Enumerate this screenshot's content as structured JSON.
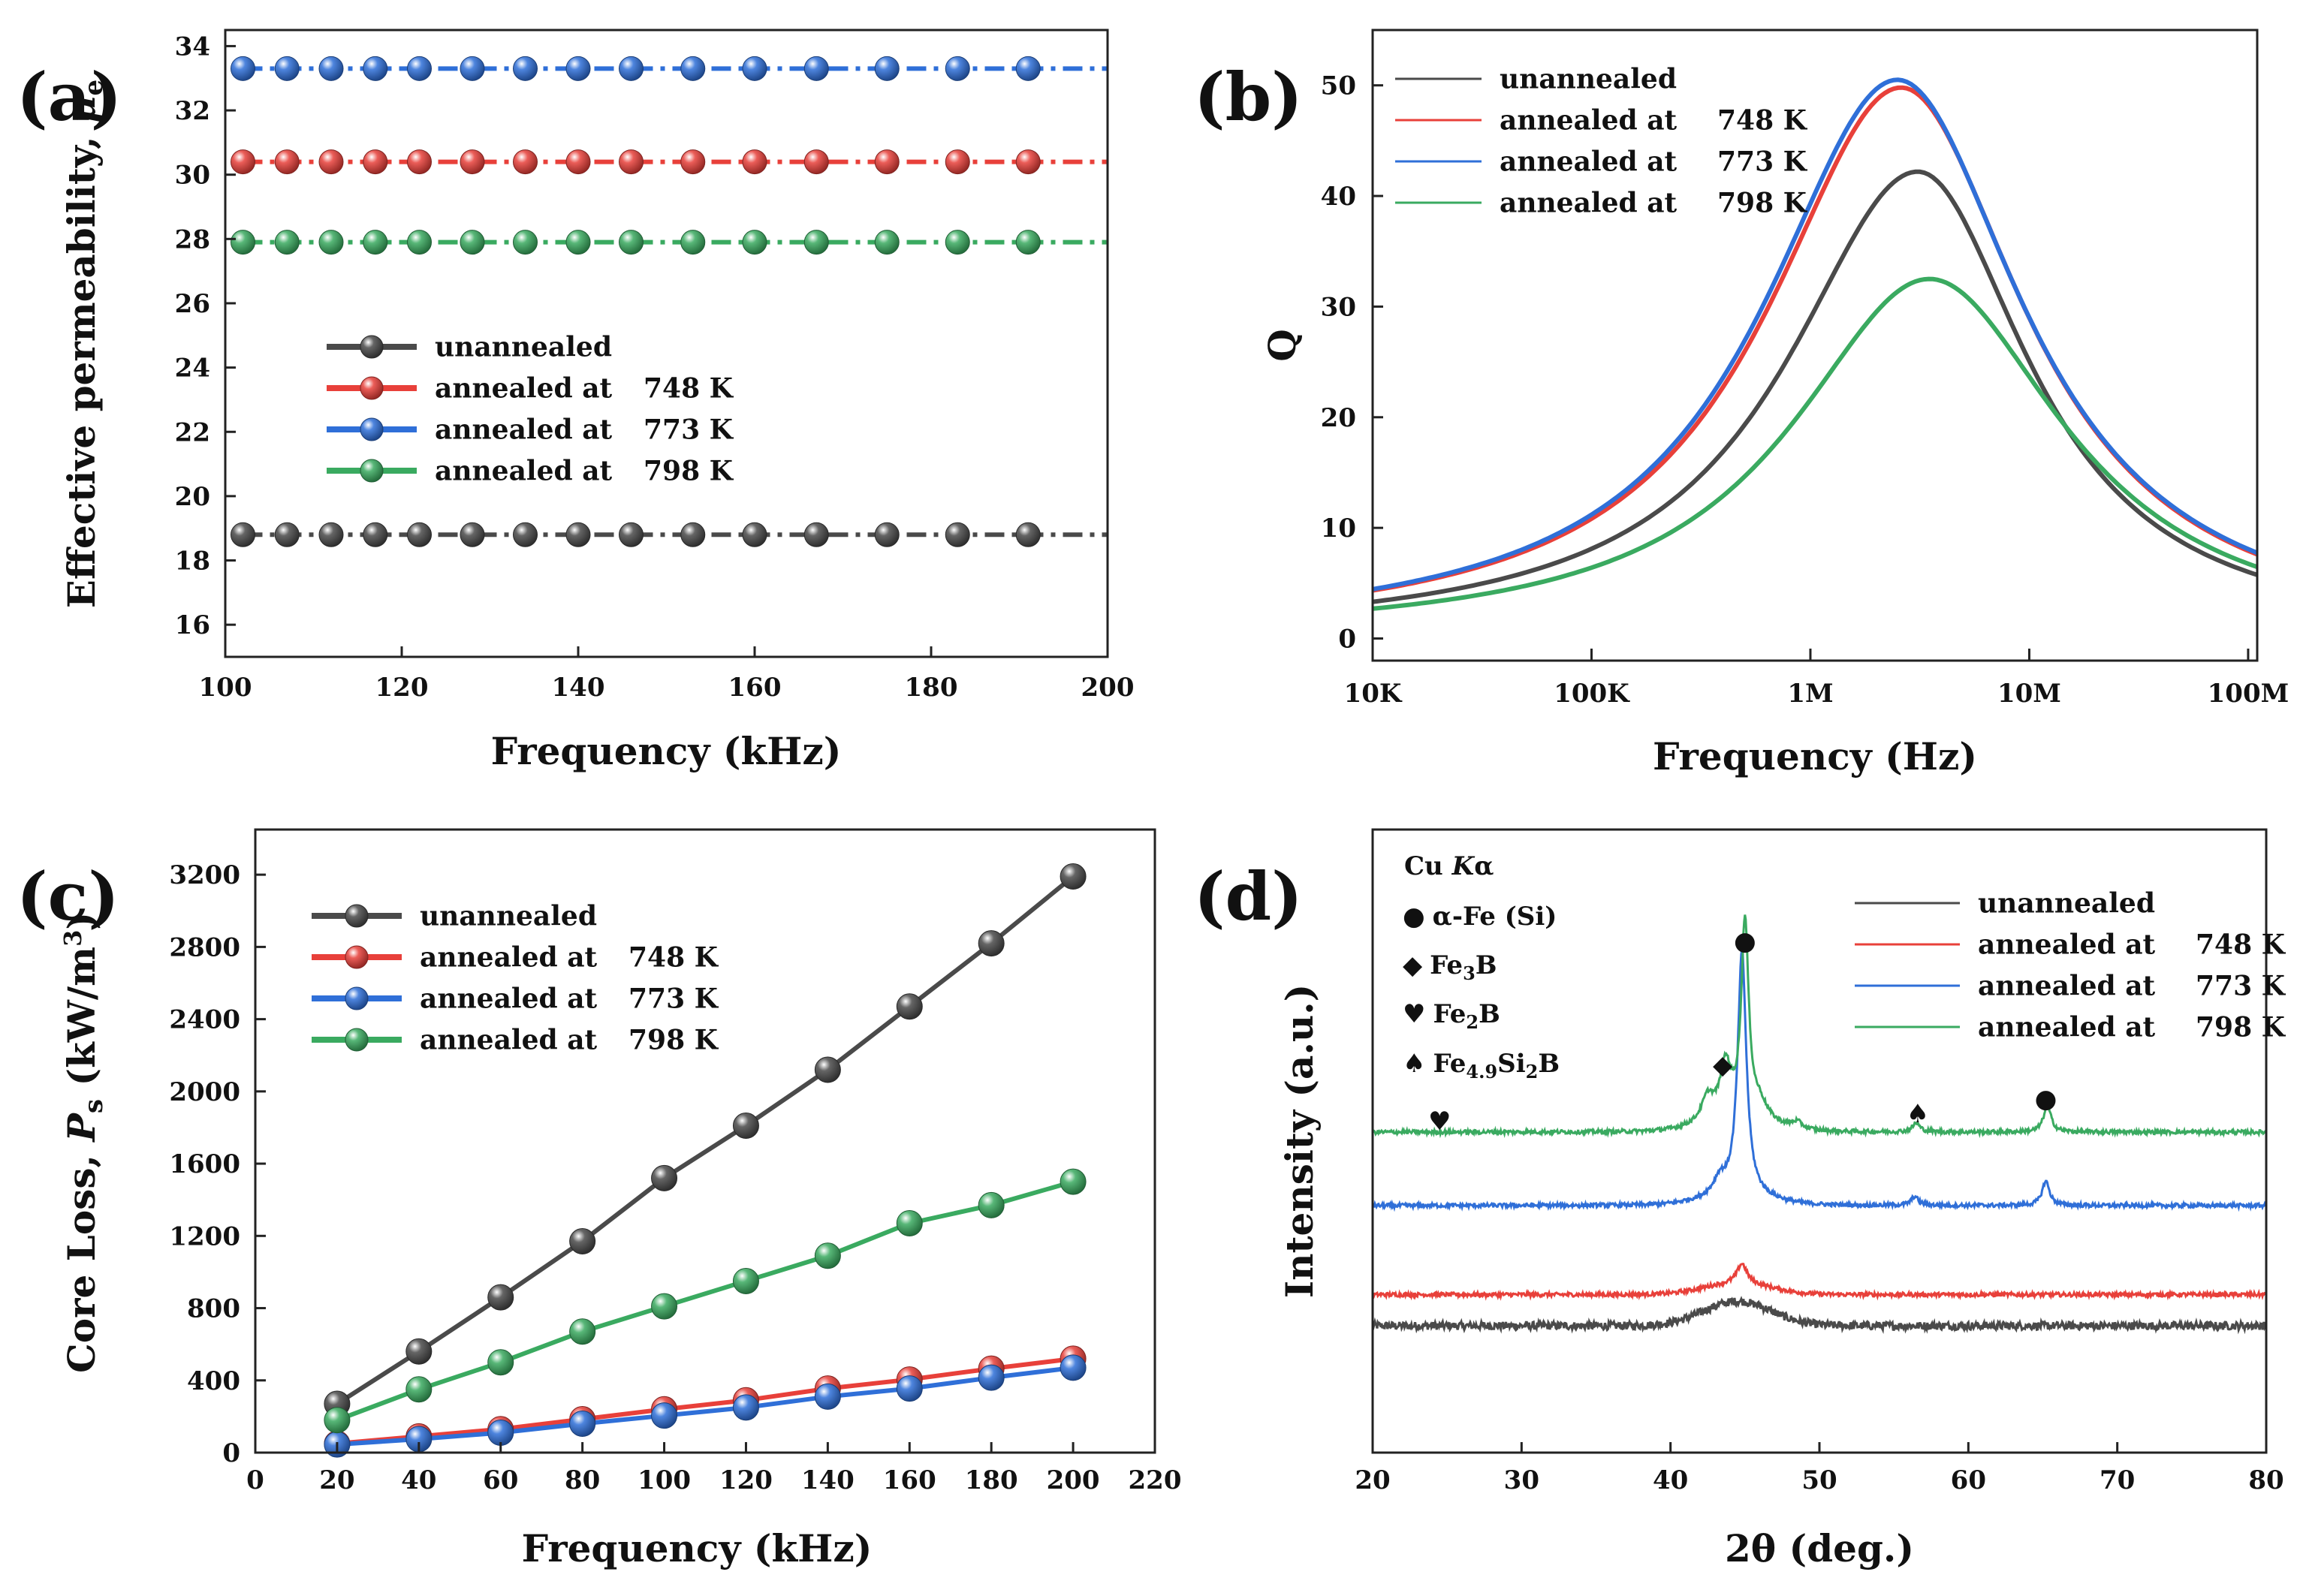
{
  "colors": {
    "unannealed": "#4a4a4a",
    "annealed_748": "#e8403a",
    "annealed_773": "#2f6fd8",
    "annealed_798": "#3aaa60"
  },
  "chart_data": [
    {
      "panel": "(a)",
      "type": "line",
      "xlabel": "Frequency (kHz)",
      "ylabel": "Effective permeability, ",
      "ylabel_symbol": "μ",
      "ylabel_sub": "e",
      "xlim": [
        100,
        200
      ],
      "ylim": [
        15,
        34.5
      ],
      "xticks": [
        "100",
        "120",
        "140",
        "160",
        "180",
        "200"
      ],
      "yticks": [
        "16",
        "18",
        "20",
        "22",
        "24",
        "26",
        "28",
        "30",
        "32",
        "34"
      ],
      "x": [
        102,
        107,
        112,
        117,
        122,
        128,
        134,
        140,
        146,
        153,
        160,
        167,
        175,
        183,
        191
      ],
      "series": [
        {
          "name": "unannealed",
          "key": "unannealed",
          "values": [
            18.8,
            18.8,
            18.8,
            18.8,
            18.8,
            18.8,
            18.8,
            18.8,
            18.8,
            18.8,
            18.8,
            18.8,
            18.8,
            18.8,
            18.8
          ]
        },
        {
          "name": "annealed at",
          "temp": "748 K",
          "key": "annealed_748",
          "values": [
            30.4,
            30.4,
            30.4,
            30.4,
            30.4,
            30.4,
            30.4,
            30.4,
            30.4,
            30.4,
            30.4,
            30.4,
            30.4,
            30.4,
            30.4
          ]
        },
        {
          "name": "annealed at",
          "temp": "773 K",
          "key": "annealed_773",
          "values": [
            33.3,
            33.3,
            33.3,
            33.3,
            33.3,
            33.3,
            33.3,
            33.3,
            33.3,
            33.3,
            33.3,
            33.3,
            33.3,
            33.3,
            33.3
          ]
        },
        {
          "name": "annealed at",
          "temp": "798 K",
          "key": "annealed_798",
          "values": [
            27.9,
            27.9,
            27.9,
            27.9,
            27.9,
            27.9,
            27.9,
            27.9,
            27.9,
            27.9,
            27.9,
            27.9,
            27.9,
            27.9,
            27.9
          ]
        }
      ],
      "legend": "center-left"
    },
    {
      "panel": "(b)",
      "type": "line",
      "xlabel": "Frequency (Hz)",
      "ylabel": "Q",
      "xscale": "log",
      "xlim": [
        10000,
        110000000
      ],
      "ylim": [
        -2,
        55
      ],
      "xticks": [
        {
          "v": 10000,
          "label": "10K"
        },
        {
          "v": 100000,
          "label": "100K"
        },
        {
          "v": 1000000,
          "label": "1M"
        },
        {
          "v": 10000000,
          "label": "10M"
        },
        {
          "v": 100000000,
          "label": "100M"
        }
      ],
      "yticks": [
        "0",
        "10",
        "20",
        "30",
        "40",
        "50"
      ],
      "peak_model": [
        {
          "name": "unannealed",
          "key": "unannealed",
          "peak_f": 3100000,
          "peak_q": 42.2,
          "width_low": 0.78,
          "width_high": 0.66
        },
        {
          "name": "annealed at",
          "temp": "748 K",
          "key": "annealed_748",
          "peak_f": 2600000,
          "peak_q": 49.8,
          "width_low": 0.8,
          "width_high": 0.74
        },
        {
          "name": "annealed at",
          "temp": "773 K",
          "key": "annealed_773",
          "peak_f": 2500000,
          "peak_q": 50.5,
          "width_low": 0.8,
          "width_high": 0.75
        },
        {
          "name": "annealed at",
          "temp": "798 K",
          "key": "annealed_798",
          "peak_f": 3500000,
          "peak_q": 32.5,
          "width_low": 0.82,
          "width_high": 0.8
        }
      ],
      "legend": "top-left"
    },
    {
      "panel": "(c)",
      "type": "line",
      "xlabel": "Frequency (kHz)",
      "ylabel": "Core Loss, ",
      "ylabel_symbol": "P",
      "ylabel_sub": "s",
      "ylabel_unit": " (kW/m",
      "ylabel_sup": "3",
      "ylabel_end": ")",
      "xlim": [
        0,
        220
      ],
      "ylim": [
        0,
        3450
      ],
      "xticks": [
        "0",
        "20",
        "40",
        "60",
        "80",
        "100",
        "120",
        "140",
        "160",
        "180",
        "200",
        "220"
      ],
      "yticks": [
        "0",
        "400",
        "800",
        "1200",
        "1600",
        "2000",
        "2400",
        "2800",
        "3200"
      ],
      "x": [
        20,
        40,
        60,
        80,
        100,
        120,
        140,
        160,
        180,
        200
      ],
      "series": [
        {
          "name": "unannealed",
          "key": "unannealed",
          "values": [
            270,
            560,
            860,
            1170,
            1520,
            1810,
            2120,
            2470,
            2820,
            3190
          ]
        },
        {
          "name": "annealed at",
          "temp": "748 K",
          "key": "annealed_748",
          "values": [
            50,
            90,
            130,
            185,
            240,
            290,
            355,
            405,
            465,
            520
          ]
        },
        {
          "name": "annealed at",
          "temp": "773 K",
          "key": "annealed_773",
          "values": [
            45,
            75,
            110,
            160,
            205,
            250,
            310,
            355,
            415,
            470
          ]
        },
        {
          "name": "annealed at",
          "temp": "798 K",
          "key": "annealed_798",
          "values": [
            180,
            350,
            500,
            670,
            810,
            950,
            1090,
            1270,
            1370,
            1500
          ]
        }
      ],
      "legend": "top-left"
    },
    {
      "panel": "(d)",
      "type": "line",
      "xlabel": "2θ (deg.)",
      "ylabel": "Intensity (a.u.)",
      "xlim": [
        20,
        80
      ],
      "ylim": [
        -2,
        12
      ],
      "xticks": [
        "20",
        "30",
        "40",
        "50",
        "60",
        "70",
        "80"
      ],
      "series": [
        {
          "name": "unannealed",
          "key": "unannealed",
          "baseline": 0.85,
          "broad_hump": 0.55,
          "peaks": []
        },
        {
          "name": "annealed at",
          "temp": "748 K",
          "key": "annealed_748",
          "baseline": 1.55,
          "broad_hump": 0.25,
          "peaks": [
            [
              44.8,
              0.45,
              0.4
            ]
          ]
        },
        {
          "name": "annealed at",
          "temp": "773 K",
          "key": "annealed_773",
          "baseline": 3.55,
          "broad_hump": 0.2,
          "peaks": [
            [
              44.8,
              5.5,
              0.35
            ],
            [
              43.3,
              0.35,
              0.5
            ],
            [
              65.2,
              0.55,
              0.3
            ],
            [
              56.4,
              0.2,
              0.3
            ]
          ]
        },
        {
          "name": "annealed at",
          "temp": "798 K",
          "key": "annealed_798",
          "baseline": 5.2,
          "broad_hump": 0.25,
          "peaks": [
            [
              45.0,
              4.4,
              0.3
            ],
            [
              43.7,
              1.2,
              0.45
            ],
            [
              42.5,
              0.55,
              0.5
            ],
            [
              46.0,
              0.35,
              0.6
            ],
            [
              65.3,
              0.6,
              0.3
            ],
            [
              56.5,
              0.2,
              0.3
            ],
            [
              48.5,
              0.15,
              0.4
            ]
          ]
        }
      ],
      "annotations": {
        "source": {
          "pre": "Cu ",
          "italic": "K",
          "post": "α"
        },
        "alpha_fe": "α-Fe (Si)",
        "fe3b": {
          "pre": "Fe",
          "sub": "3",
          "post": "B"
        },
        "fe2b": {
          "pre": "Fe",
          "sub": "2",
          "post": "B"
        },
        "fesib": {
          "pre": "Fe",
          "sub1": "4.9",
          "mid": "Si",
          "sub2": "2",
          "post": "B"
        },
        "markers": [
          {
            "kind": "circle",
            "x": 45.0
          },
          {
            "kind": "diamond",
            "x": 43.5
          },
          {
            "kind": "heart",
            "x": 24.5
          },
          {
            "kind": "spade",
            "x": 56.6
          },
          {
            "kind": "circle",
            "x": 65.2
          }
        ],
        "symbols": {
          "circle": "●",
          "diamond": "◆",
          "heart": "♥",
          "spade": "♠"
        }
      },
      "legend": "top-right"
    }
  ]
}
